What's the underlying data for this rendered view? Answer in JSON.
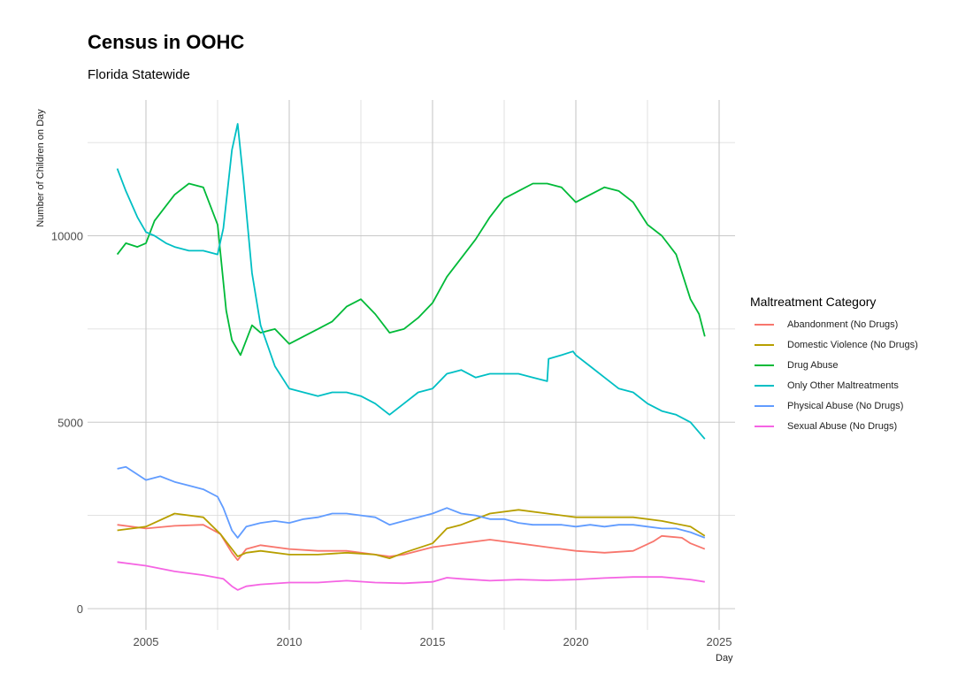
{
  "chart_data": {
    "type": "line",
    "title": "Census in OOHC",
    "subtitle": "Florida Statewide",
    "xlabel": "Day",
    "ylabel": "Number of Children on Day",
    "xlim": [
      2004.0,
      2024.5
    ],
    "ylim": [
      0,
      13000
    ],
    "x_ticks": [
      2005,
      2010,
      2015,
      2020,
      2025
    ],
    "y_ticks": [
      0,
      5000,
      10000
    ],
    "grid": true,
    "legend_title": "Maltreatment Category",
    "legend_position": "right",
    "series": [
      {
        "name": "Abandonment (No Drugs)",
        "color": "#F8766D",
        "points": [
          [
            2004.0,
            2250
          ],
          [
            2005.0,
            2150
          ],
          [
            2006.0,
            2220
          ],
          [
            2007.0,
            2250
          ],
          [
            2007.6,
            2000
          ],
          [
            2008.0,
            1500
          ],
          [
            2008.2,
            1300
          ],
          [
            2008.5,
            1600
          ],
          [
            2009.0,
            1700
          ],
          [
            2010.0,
            1600
          ],
          [
            2011.0,
            1550
          ],
          [
            2012.0,
            1550
          ],
          [
            2013.0,
            1450
          ],
          [
            2013.5,
            1400
          ],
          [
            2014.0,
            1450
          ],
          [
            2015.0,
            1650
          ],
          [
            2016.0,
            1750
          ],
          [
            2017.0,
            1850
          ],
          [
            2018.0,
            1750
          ],
          [
            2019.0,
            1650
          ],
          [
            2020.0,
            1550
          ],
          [
            2021.0,
            1500
          ],
          [
            2022.0,
            1550
          ],
          [
            2022.7,
            1800
          ],
          [
            2023.0,
            1950
          ],
          [
            2023.7,
            1900
          ],
          [
            2024.0,
            1750
          ],
          [
            2024.5,
            1600
          ]
        ]
      },
      {
        "name": "Domestic Violence (No Drugs)",
        "color": "#B79F00",
        "points": [
          [
            2004.0,
            2100
          ],
          [
            2005.0,
            2200
          ],
          [
            2006.0,
            2550
          ],
          [
            2007.0,
            2450
          ],
          [
            2007.6,
            2000
          ],
          [
            2008.0,
            1600
          ],
          [
            2008.2,
            1400
          ],
          [
            2008.5,
            1500
          ],
          [
            2009.0,
            1550
          ],
          [
            2010.0,
            1450
          ],
          [
            2011.0,
            1450
          ],
          [
            2012.0,
            1500
          ],
          [
            2013.0,
            1450
          ],
          [
            2013.5,
            1350
          ],
          [
            2014.0,
            1500
          ],
          [
            2015.0,
            1750
          ],
          [
            2015.5,
            2150
          ],
          [
            2016.0,
            2250
          ],
          [
            2017.0,
            2550
          ],
          [
            2018.0,
            2650
          ],
          [
            2019.0,
            2550
          ],
          [
            2020.0,
            2450
          ],
          [
            2021.0,
            2450
          ],
          [
            2022.0,
            2450
          ],
          [
            2023.0,
            2350
          ],
          [
            2024.0,
            2200
          ],
          [
            2024.5,
            1950
          ]
        ]
      },
      {
        "name": "Drug Abuse",
        "color": "#00BA38",
        "points": [
          [
            2004.0,
            9500
          ],
          [
            2004.3,
            9800
          ],
          [
            2004.7,
            9700
          ],
          [
            2005.0,
            9800
          ],
          [
            2005.3,
            10400
          ],
          [
            2006.0,
            11100
          ],
          [
            2006.5,
            11400
          ],
          [
            2007.0,
            11300
          ],
          [
            2007.5,
            10300
          ],
          [
            2007.8,
            8000
          ],
          [
            2008.0,
            7200
          ],
          [
            2008.3,
            6800
          ],
          [
            2008.7,
            7600
          ],
          [
            2009.0,
            7400
          ],
          [
            2009.5,
            7500
          ],
          [
            2010.0,
            7100
          ],
          [
            2010.5,
            7300
          ],
          [
            2011.0,
            7500
          ],
          [
            2011.5,
            7700
          ],
          [
            2012.0,
            8100
          ],
          [
            2012.5,
            8300
          ],
          [
            2013.0,
            7900
          ],
          [
            2013.5,
            7400
          ],
          [
            2014.0,
            7500
          ],
          [
            2014.5,
            7800
          ],
          [
            2015.0,
            8200
          ],
          [
            2015.5,
            8900
          ],
          [
            2016.0,
            9400
          ],
          [
            2016.5,
            9900
          ],
          [
            2017.0,
            10500
          ],
          [
            2017.5,
            11000
          ],
          [
            2018.0,
            11200
          ],
          [
            2018.5,
            11400
          ],
          [
            2019.0,
            11400
          ],
          [
            2019.5,
            11300
          ],
          [
            2020.0,
            10900
          ],
          [
            2020.5,
            11100
          ],
          [
            2021.0,
            11300
          ],
          [
            2021.5,
            11200
          ],
          [
            2022.0,
            10900
          ],
          [
            2022.5,
            10300
          ],
          [
            2023.0,
            10000
          ],
          [
            2023.5,
            9500
          ],
          [
            2024.0,
            8300
          ],
          [
            2024.3,
            7900
          ],
          [
            2024.5,
            7300
          ]
        ]
      },
      {
        "name": "Only Other Maltreatments",
        "color": "#00BFC4",
        "points": [
          [
            2004.0,
            11800
          ],
          [
            2004.3,
            11200
          ],
          [
            2004.7,
            10500
          ],
          [
            2005.0,
            10100
          ],
          [
            2005.3,
            10000
          ],
          [
            2005.7,
            9800
          ],
          [
            2006.0,
            9700
          ],
          [
            2006.5,
            9600
          ],
          [
            2007.0,
            9600
          ],
          [
            2007.5,
            9500
          ],
          [
            2007.7,
            10200
          ],
          [
            2008.0,
            12300
          ],
          [
            2008.2,
            13000
          ],
          [
            2008.4,
            11500
          ],
          [
            2008.7,
            9000
          ],
          [
            2009.0,
            7600
          ],
          [
            2009.5,
            6500
          ],
          [
            2010.0,
            5900
          ],
          [
            2010.5,
            5800
          ],
          [
            2011.0,
            5700
          ],
          [
            2011.5,
            5800
          ],
          [
            2012.0,
            5800
          ],
          [
            2012.5,
            5700
          ],
          [
            2013.0,
            5500
          ],
          [
            2013.5,
            5200
          ],
          [
            2014.0,
            5500
          ],
          [
            2014.5,
            5800
          ],
          [
            2015.0,
            5900
          ],
          [
            2015.5,
            6300
          ],
          [
            2016.0,
            6400
          ],
          [
            2016.5,
            6200
          ],
          [
            2017.0,
            6300
          ],
          [
            2017.5,
            6300
          ],
          [
            2018.0,
            6300
          ],
          [
            2018.5,
            6200
          ],
          [
            2019.0,
            6100
          ],
          [
            2019.05,
            6700
          ],
          [
            2019.5,
            6800
          ],
          [
            2019.9,
            6900
          ],
          [
            2020.0,
            6800
          ],
          [
            2020.5,
            6500
          ],
          [
            2021.0,
            6200
          ],
          [
            2021.5,
            5900
          ],
          [
            2022.0,
            5800
          ],
          [
            2022.5,
            5500
          ],
          [
            2023.0,
            5300
          ],
          [
            2023.5,
            5200
          ],
          [
            2024.0,
            5000
          ],
          [
            2024.5,
            4550
          ]
        ]
      },
      {
        "name": "Physical Abuse (No Drugs)",
        "color": "#619CFF",
        "points": [
          [
            2004.0,
            3750
          ],
          [
            2004.3,
            3800
          ],
          [
            2004.7,
            3600
          ],
          [
            2005.0,
            3450
          ],
          [
            2005.5,
            3550
          ],
          [
            2006.0,
            3400
          ],
          [
            2006.5,
            3300
          ],
          [
            2007.0,
            3200
          ],
          [
            2007.5,
            3000
          ],
          [
            2007.7,
            2700
          ],
          [
            2008.0,
            2100
          ],
          [
            2008.2,
            1900
          ],
          [
            2008.5,
            2200
          ],
          [
            2009.0,
            2300
          ],
          [
            2009.5,
            2350
          ],
          [
            2010.0,
            2300
          ],
          [
            2010.5,
            2400
          ],
          [
            2011.0,
            2450
          ],
          [
            2011.5,
            2550
          ],
          [
            2012.0,
            2550
          ],
          [
            2012.5,
            2500
          ],
          [
            2013.0,
            2450
          ],
          [
            2013.5,
            2250
          ],
          [
            2014.0,
            2350
          ],
          [
            2014.5,
            2450
          ],
          [
            2015.0,
            2550
          ],
          [
            2015.5,
            2700
          ],
          [
            2016.0,
            2550
          ],
          [
            2016.5,
            2500
          ],
          [
            2017.0,
            2400
          ],
          [
            2017.5,
            2400
          ],
          [
            2018.0,
            2300
          ],
          [
            2018.5,
            2250
          ],
          [
            2019.0,
            2250
          ],
          [
            2019.5,
            2250
          ],
          [
            2020.0,
            2200
          ],
          [
            2020.5,
            2250
          ],
          [
            2021.0,
            2200
          ],
          [
            2021.5,
            2250
          ],
          [
            2022.0,
            2250
          ],
          [
            2022.5,
            2200
          ],
          [
            2023.0,
            2150
          ],
          [
            2023.5,
            2150
          ],
          [
            2024.0,
            2050
          ],
          [
            2024.5,
            1900
          ]
        ]
      },
      {
        "name": "Sexual Abuse (No Drugs)",
        "color": "#F564E3",
        "points": [
          [
            2004.0,
            1250
          ],
          [
            2005.0,
            1150
          ],
          [
            2006.0,
            1000
          ],
          [
            2007.0,
            900
          ],
          [
            2007.7,
            800
          ],
          [
            2008.0,
            600
          ],
          [
            2008.2,
            500
          ],
          [
            2008.5,
            600
          ],
          [
            2009.0,
            650
          ],
          [
            2010.0,
            700
          ],
          [
            2011.0,
            700
          ],
          [
            2012.0,
            750
          ],
          [
            2013.0,
            700
          ],
          [
            2014.0,
            680
          ],
          [
            2015.0,
            720
          ],
          [
            2015.5,
            830
          ],
          [
            2016.0,
            800
          ],
          [
            2017.0,
            750
          ],
          [
            2018.0,
            780
          ],
          [
            2019.0,
            760
          ],
          [
            2020.0,
            780
          ],
          [
            2021.0,
            820
          ],
          [
            2022.0,
            850
          ],
          [
            2023.0,
            850
          ],
          [
            2024.0,
            780
          ],
          [
            2024.5,
            720
          ]
        ]
      }
    ]
  }
}
